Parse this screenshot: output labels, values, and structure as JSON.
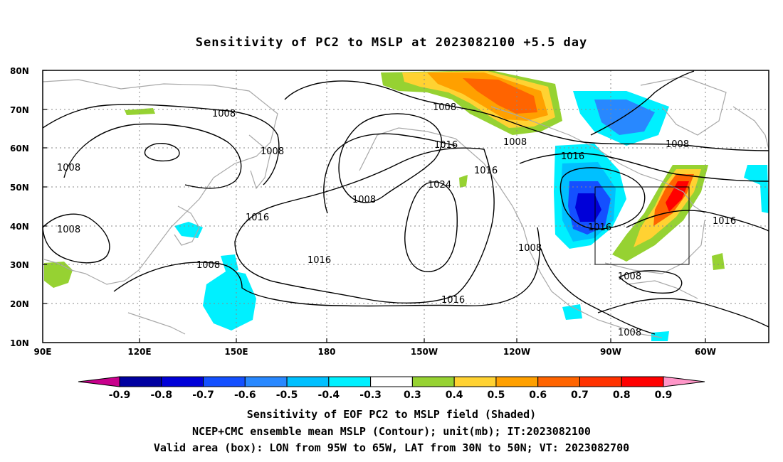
{
  "title": "Sensitivity of PC2 to MSLP at 2023082100 +5.5 day",
  "lat_labels": [
    "80N",
    "70N",
    "60N",
    "50N",
    "40N",
    "30N",
    "20N",
    "10N"
  ],
  "lon_labels": [
    "90E",
    "120E",
    "150E",
    "180",
    "150W",
    "120W",
    "90W",
    "60W"
  ],
  "contour_labels": [
    "1008",
    "1008",
    "1008",
    "1008",
    "1008",
    "1008",
    "1008",
    "1008",
    "1008",
    "1008",
    "1016",
    "1016",
    "1016",
    "1016",
    "1016",
    "1016",
    "1016",
    "1024",
    "1008",
    "1008"
  ],
  "colorbar": {
    "labels": [
      "-0.9",
      "-0.8",
      "-0.7",
      "-0.6",
      "-0.5",
      "-0.4",
      "-0.3",
      "0.3",
      "0.4",
      "0.5",
      "0.6",
      "0.7",
      "0.8",
      "0.9"
    ],
    "colors": [
      "#c8008c",
      "#0000a0",
      "#0000d8",
      "#1450ff",
      "#2888ff",
      "#00c0ff",
      "#00f0ff",
      "#ffffff",
      "#96d232",
      "#ffd232",
      "#ffa000",
      "#ff6400",
      "#ff3200",
      "#ff0000",
      "#ff96c8"
    ]
  },
  "box": {
    "lon_from": "95W",
    "lon_to": "65W",
    "lat_from": "30N",
    "lat_to": "50N"
  },
  "captions": {
    "line1": "Sensitivity of EOF PC2 to MSLP field (Shaded)",
    "line2": "NCEP+CMC ensemble mean MSLP (Contour); unit(mb); IT:2023082100",
    "line3": "Valid area (box): LON from 95W to 65W, LAT from 30N to 50N; VT: 2023082700"
  }
}
